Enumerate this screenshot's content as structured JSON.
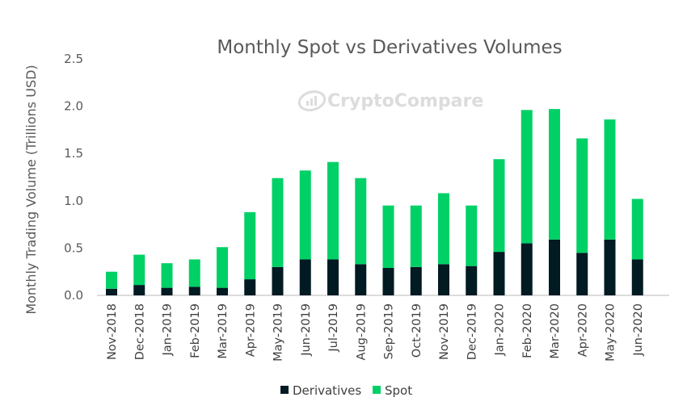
{
  "chart_data": {
    "type": "bar",
    "stacked": true,
    "title": "Monthly Spot vs Derivatives Volumes",
    "xlabel": "",
    "ylabel": "Monthly Trading Volume (Trillions USD)",
    "ylim": [
      0,
      2.5
    ],
    "yticks": [
      "0.0",
      "0.5",
      "1.0",
      "1.5",
      "2.0",
      "2.5"
    ],
    "ytick_values": [
      0,
      0.5,
      1.0,
      1.5,
      2.0,
      2.5
    ],
    "grid": false,
    "legend_position": "bottom",
    "watermark": "CryptoCompare",
    "categories": [
      "Nov-2018",
      "Dec-2018",
      "Jan-2019",
      "Feb-2019",
      "Mar-2019",
      "Apr-2019",
      "May-2019",
      "Jun-2019",
      "Jul-2019",
      "Aug-2019",
      "Sep-2019",
      "Oct-2019",
      "Nov-2019",
      "Dec-2019",
      "Jan-2020",
      "Feb-2020",
      "Mar-2020",
      "Apr-2020",
      "May-2020",
      "Jun-2020"
    ],
    "series": [
      {
        "name": "Derivatives",
        "color": "#021a22",
        "values": [
          0.07,
          0.11,
          0.08,
          0.09,
          0.08,
          0.17,
          0.3,
          0.38,
          0.38,
          0.33,
          0.29,
          0.3,
          0.33,
          0.31,
          0.46,
          0.55,
          0.59,
          0.45,
          0.59,
          0.38
        ]
      },
      {
        "name": "Spot",
        "color": "#00d166",
        "values": [
          0.18,
          0.32,
          0.26,
          0.29,
          0.43,
          0.71,
          0.94,
          0.94,
          1.03,
          0.91,
          0.66,
          0.65,
          0.75,
          0.64,
          0.98,
          1.41,
          1.38,
          1.21,
          1.27,
          0.64
        ]
      }
    ]
  }
}
